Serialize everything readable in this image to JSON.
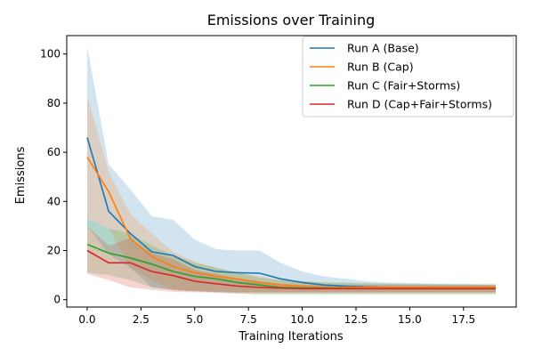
{
  "chart_data": {
    "type": "line",
    "title": "Emissions over Training",
    "xlabel": "Training Iterations",
    "ylabel": "Emissions",
    "xlim": [
      -0.95,
      19.95
    ],
    "ylim": [
      -3.0,
      107.5
    ],
    "xticks": [
      0.0,
      2.5,
      5.0,
      7.5,
      10.0,
      12.5,
      15.0,
      17.5
    ],
    "xtick_labels": [
      "0.0",
      "2.5",
      "5.0",
      "7.5",
      "10.0",
      "12.5",
      "15.0",
      "17.5"
    ],
    "yticks": [
      0,
      20,
      40,
      60,
      80,
      100
    ],
    "ytick_labels": [
      "0",
      "20",
      "40",
      "60",
      "80",
      "100"
    ],
    "grid": false,
    "legend_position": "top-right",
    "x": [
      0,
      1,
      2,
      3,
      4,
      5,
      6,
      7,
      8,
      9,
      10,
      11,
      12,
      13,
      14,
      15,
      16,
      17,
      18,
      19
    ],
    "series": [
      {
        "name": "Run A (Base)",
        "color": "#1f77b4",
        "values": [
          66.0,
          36.0,
          27.0,
          19.5,
          18.0,
          13.5,
          11.5,
          11.0,
          10.8,
          8.5,
          7.0,
          6.0,
          5.5,
          5.2,
          5.0,
          5.0,
          5.0,
          5.0,
          5.0,
          5.0
        ],
        "lower": [
          30.0,
          18.5,
          13.0,
          5.0,
          4.0,
          3.5,
          3.2,
          3.0,
          3.0,
          3.0,
          3.0,
          3.0,
          3.0,
          3.0,
          3.0,
          3.0,
          3.0,
          3.0,
          3.0,
          3.0
        ],
        "upper": [
          103.0,
          55.0,
          45.0,
          34.0,
          32.5,
          24.5,
          20.5,
          20.0,
          20.0,
          15.0,
          11.5,
          9.5,
          8.5,
          7.5,
          7.0,
          6.8,
          6.5,
          6.3,
          6.2,
          6.0
        ]
      },
      {
        "name": "Run B (Cap)",
        "color": "#ff7f0e",
        "values": [
          58.0,
          44.0,
          25.0,
          17.5,
          13.5,
          11.0,
          9.5,
          8.5,
          7.0,
          6.0,
          5.5,
          5.0,
          5.0,
          5.0,
          5.0,
          5.0,
          5.0,
          5.0,
          5.0,
          5.0
        ],
        "lower": [
          33.0,
          29.0,
          13.0,
          8.0,
          4.0,
          3.5,
          3.2,
          3.0,
          3.0,
          3.0,
          3.0,
          3.0,
          3.0,
          3.0,
          3.0,
          3.0,
          3.0,
          3.0,
          3.0,
          3.0
        ],
        "upper": [
          83.0,
          52.0,
          35.0,
          27.0,
          19.5,
          15.5,
          13.0,
          11.0,
          9.5,
          8.0,
          7.5,
          7.0,
          6.8,
          6.5,
          6.3,
          6.2,
          6.0,
          6.0,
          6.0,
          6.0
        ]
      },
      {
        "name": "Run C (Fair+Storms)",
        "color": "#2ca02c",
        "values": [
          22.5,
          19.0,
          17.0,
          14.5,
          11.5,
          9.5,
          8.5,
          7.0,
          6.0,
          5.0,
          4.8,
          4.7,
          4.6,
          4.5,
          4.5,
          4.5,
          4.5,
          4.5,
          4.5,
          4.5
        ],
        "lower": [
          11.0,
          10.0,
          8.0,
          5.0,
          4.0,
          3.5,
          3.0,
          2.5,
          2.0,
          2.0,
          2.0,
          2.0,
          2.0,
          2.0,
          2.0,
          2.0,
          2.0,
          2.0,
          2.0,
          2.0
        ],
        "upper": [
          33.0,
          29.0,
          27.0,
          22.0,
          18.0,
          15.0,
          13.0,
          11.0,
          9.0,
          8.0,
          7.5,
          7.0,
          7.0,
          6.8,
          6.5,
          6.5,
          6.5,
          6.5,
          6.5,
          6.5
        ]
      },
      {
        "name": "Run D (Cap+Fair+Storms)",
        "color": "#d62728",
        "values": [
          20.0,
          15.0,
          15.0,
          11.5,
          9.8,
          7.5,
          6.5,
          5.5,
          5.0,
          4.7,
          4.5,
          4.5,
          4.5,
          4.5,
          4.5,
          4.5,
          4.5,
          4.5,
          4.5,
          4.5
        ],
        "lower": [
          10.5,
          8.0,
          5.0,
          4.0,
          3.2,
          3.0,
          2.8,
          2.5,
          2.5,
          2.5,
          2.5,
          2.5,
          2.5,
          2.5,
          2.5,
          2.5,
          2.5,
          2.5,
          2.5,
          2.5
        ],
        "upper": [
          30.0,
          22.0,
          25.0,
          19.0,
          16.5,
          12.0,
          10.5,
          8.5,
          7.5,
          6.5,
          6.0,
          6.0,
          6.0,
          6.0,
          6.0,
          6.0,
          6.0,
          6.0,
          6.0,
          6.0
        ]
      }
    ]
  }
}
